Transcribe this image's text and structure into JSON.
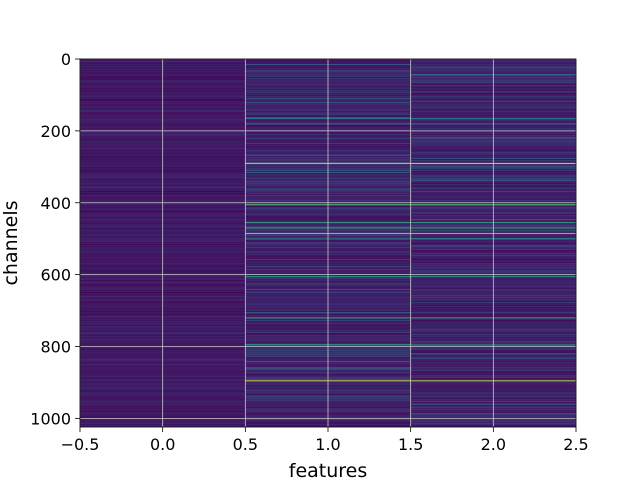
{
  "chart_data": {
    "type": "heatmap",
    "xlabel": "features",
    "ylabel": "channels",
    "xlim": [
      -0.5,
      2.5
    ],
    "ylim": [
      1024,
      0
    ],
    "xticks": [
      "−0.5",
      "0.0",
      "0.5",
      "1.0",
      "1.5",
      "2.0",
      "2.5"
    ],
    "xtick_values": [
      -0.5,
      0.0,
      0.5,
      1.0,
      1.5,
      2.0,
      2.5
    ],
    "yticks": [
      "0",
      "200",
      "400",
      "600",
      "800",
      "1000"
    ],
    "ytick_values": [
      0,
      200,
      400,
      600,
      800,
      1000
    ],
    "grid": true,
    "colormap": "viridis",
    "n_rows": 1024,
    "n_cols": 3,
    "column_baseline": [
      0.06,
      0.13,
      0.13
    ],
    "highlight_rows": [
      {
        "channel": 290,
        "value": 0.95
      },
      {
        "channel": 405,
        "value": 0.7
      },
      {
        "channel": 455,
        "value": 0.6
      },
      {
        "channel": 470,
        "value": 0.65
      },
      {
        "channel": 485,
        "value": 0.85
      },
      {
        "channel": 500,
        "value": 0.5
      },
      {
        "channel": 605,
        "value": 0.55
      },
      {
        "channel": 720,
        "value": 0.6
      },
      {
        "channel": 795,
        "value": 0.55
      },
      {
        "channel": 895,
        "value": 0.9
      },
      {
        "channel": 165,
        "value": 0.45
      },
      {
        "channel": 180,
        "value": 0.4
      }
    ]
  }
}
